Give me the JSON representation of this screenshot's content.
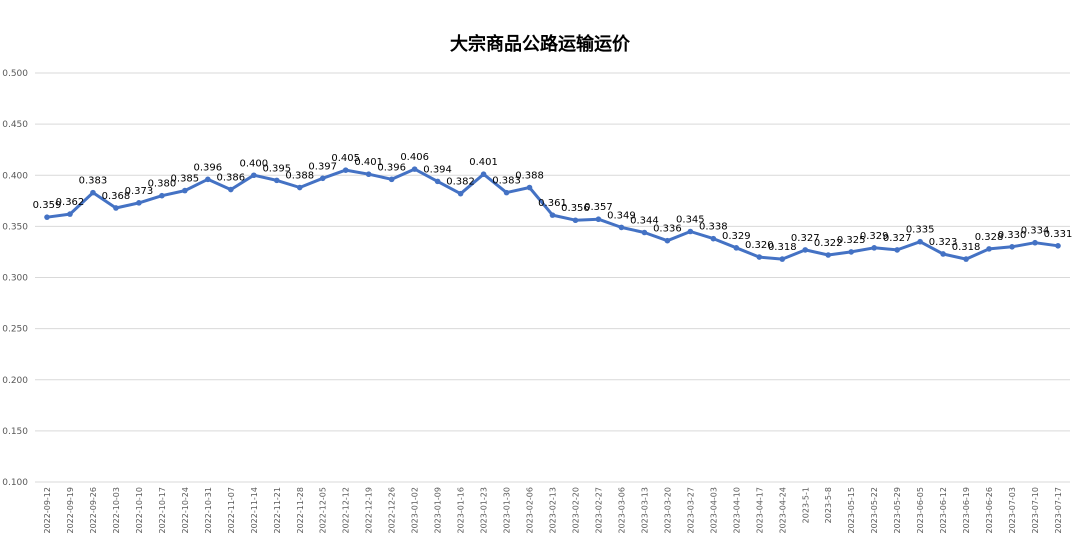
{
  "chart_data": {
    "type": "line",
    "title": "大宗商品公路运输运价",
    "xlabel": "",
    "ylabel": "",
    "ylim": [
      0.1,
      0.5
    ],
    "yticks": [
      "0.100",
      "0.150",
      "0.200",
      "0.250",
      "0.300",
      "0.350",
      "0.400",
      "0.450",
      "0.500"
    ],
    "grid": true,
    "legend": "none",
    "color": "#4472c4",
    "categories": [
      "2022-09-12",
      "2022-09-19",
      "2022-09-26",
      "2022-10-03",
      "2022-10-10",
      "2022-10-17",
      "2022-10-24",
      "2022-10-31",
      "2022-11-07",
      "2022-11-14",
      "2022-11-21",
      "2022-11-28",
      "2022-12-05",
      "2022-12-12",
      "2022-12-19",
      "2022-12-26",
      "2023-01-02",
      "2023-01-09",
      "2023-01-16",
      "2023-01-23",
      "2023-01-30",
      "2023-02-06",
      "2023-02-13",
      "2023-02-20",
      "2023-02-27",
      "2023-03-06",
      "2023-03-13",
      "2023-03-20",
      "2023-03-27",
      "2023-04-03",
      "2023-04-10",
      "2023-04-17",
      "2023-04-24",
      "2023-5-1",
      "2023-5-8",
      "2023-05-15",
      "2023-05-22",
      "2023-05-29",
      "2023-06-05",
      "2023-06-12",
      "2023-06-19",
      "2023-06-26",
      "2023-07-03",
      "2023-07-10",
      "2023-07-17"
    ],
    "series": [
      {
        "values": [
          0.359,
          0.362,
          0.383,
          0.368,
          0.373,
          0.38,
          0.385,
          0.396,
          0.386,
          0.4,
          0.395,
          0.388,
          0.397,
          0.405,
          0.401,
          0.396,
          0.406,
          0.394,
          0.382,
          0.401,
          0.383,
          0.388,
          0.361,
          0.356,
          0.357,
          0.349,
          0.344,
          0.336,
          0.345,
          0.338,
          0.329,
          0.32,
          0.318,
          0.327,
          0.322,
          0.325,
          0.329,
          0.327,
          0.335,
          0.323,
          0.318,
          0.328,
          0.33,
          0.334,
          0.331
        ]
      }
    ]
  }
}
